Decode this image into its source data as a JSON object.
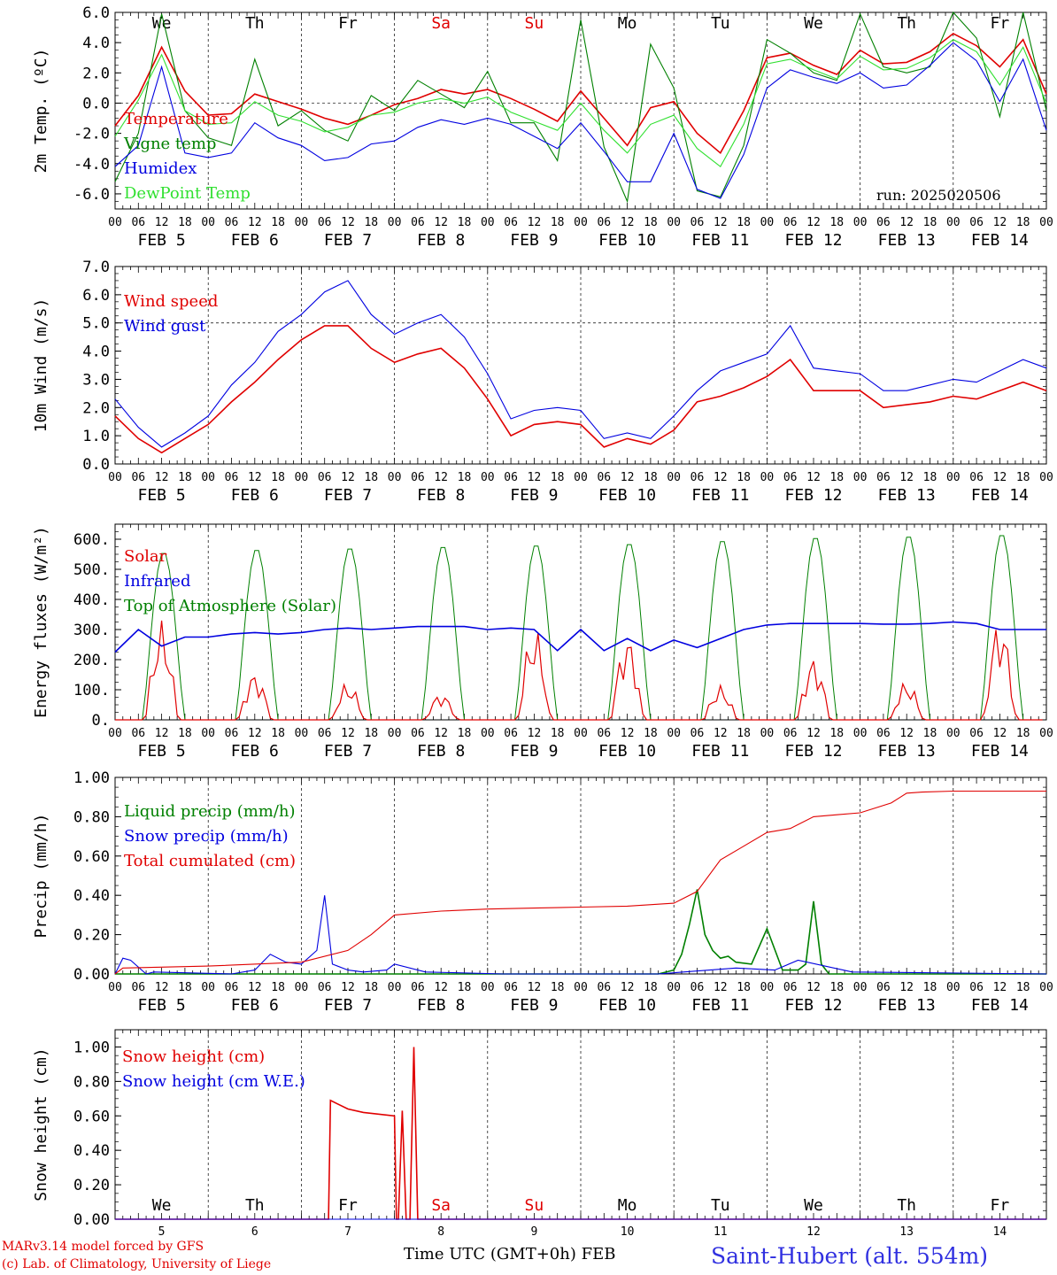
{
  "run_label": "run: 2025020506",
  "footer": {
    "credit1": "MARv3.14 model forced by GFS",
    "credit2": "(c) Lab. of Climatology, University of Liege",
    "xlabel": "Time UTC (GMT+0h)",
    "month": "FEB",
    "station": "Saint-Hubert (alt. 554m)"
  },
  "colors": {
    "red": "#e00000",
    "green": "#008000",
    "blue": "#0000e0",
    "lightgreen": "#30e030",
    "bg": "#ffffff",
    "weekday": "#000000",
    "weekend": "#e00000"
  },
  "days": [
    {
      "date": "FEB  5",
      "num": "5",
      "weekday": "We",
      "weekend": false
    },
    {
      "date": "FEB  6",
      "num": "6",
      "weekday": "Th",
      "weekend": false
    },
    {
      "date": "FEB  7",
      "num": "7",
      "weekday": "Fr",
      "weekend": false
    },
    {
      "date": "FEB  8",
      "num": "8",
      "weekday": "Sa",
      "weekend": true
    },
    {
      "date": "FEB  9",
      "num": "9",
      "weekday": "Su",
      "weekend": true
    },
    {
      "date": "FEB 10",
      "num": "10",
      "weekday": "Mo",
      "weekend": false
    },
    {
      "date": "FEB 11",
      "num": "11",
      "weekday": "Tu",
      "weekend": false
    },
    {
      "date": "FEB 12",
      "num": "12",
      "weekday": "We",
      "weekend": false
    },
    {
      "date": "FEB 13",
      "num": "13",
      "weekday": "Th",
      "weekend": false
    },
    {
      "date": "FEB 14",
      "num": "14",
      "weekday": "Fr",
      "weekend": false
    }
  ],
  "hour_labels": [
    "00",
    "06",
    "12",
    "18"
  ],
  "chart_data": [
    {
      "type": "line",
      "ylabel": "2m Temp. (ºC)",
      "ylim": [
        -7,
        6
      ],
      "yticks": [
        "6.0",
        "4.0",
        "2.0",
        "0.0",
        "-2.0",
        "-4.0",
        "-6.0"
      ],
      "ytick_values": [
        6,
        4,
        2,
        0,
        -2,
        -4,
        -6
      ],
      "ref_line": 0,
      "show_weekdays": true,
      "x_hours": [
        0,
        6,
        12,
        18,
        24,
        30,
        36,
        42,
        48,
        54,
        60,
        66,
        72,
        78,
        84,
        90,
        96,
        102,
        108,
        114,
        120,
        126,
        132,
        138,
        144,
        150,
        156,
        162,
        168,
        174,
        180,
        186,
        192,
        198,
        204,
        210,
        216,
        222,
        228,
        234,
        240
      ],
      "series": [
        {
          "name": "Temperature",
          "color": "#e00000",
          "values": [
            -1.5,
            0.5,
            3.7,
            0.8,
            -0.8,
            -0.7,
            0.6,
            0.1,
            -0.4,
            -1.0,
            -1.4,
            -0.8,
            -0.1,
            0.3,
            0.9,
            0.6,
            0.9,
            0.3,
            -0.4,
            -1.2,
            0.8,
            -1.0,
            -2.8,
            -0.3,
            0.1,
            -2.0,
            -3.3,
            -0.5,
            3.0,
            3.3,
            2.5,
            1.9,
            3.5,
            2.6,
            2.7,
            3.4,
            4.6,
            3.8,
            2.4,
            4.2,
            0.6
          ]
        },
        {
          "name": "Vigne temp",
          "color": "#008000",
          "values": [
            -5.2,
            -2.0,
            5.9,
            -0.5,
            -2.3,
            -2.8,
            2.9,
            -1.5,
            -0.5,
            -1.8,
            -2.5,
            0.5,
            -0.5,
            1.5,
            0.6,
            -0.3,
            2.1,
            -1.3,
            -1.3,
            -3.8,
            5.5,
            -2.9,
            -6.5,
            3.9,
            1.0,
            -5.8,
            -6.2,
            -2.8,
            4.2,
            3.3,
            2.0,
            1.5,
            5.9,
            2.4,
            2.0,
            2.4,
            6.0,
            4.3,
            -0.9,
            6.0,
            -0.5
          ]
        },
        {
          "name": "Humidex",
          "color": "#0000e0",
          "values": [
            -4.2,
            -2.8,
            2.4,
            -3.3,
            -3.6,
            -3.3,
            -1.3,
            -2.3,
            -2.8,
            -3.8,
            -3.6,
            -2.7,
            -2.5,
            -1.6,
            -1.1,
            -1.4,
            -1.0,
            -1.4,
            -2.2,
            -3.0,
            -1.3,
            -3.2,
            -5.2,
            -5.2,
            -2.0,
            -5.7,
            -6.3,
            -3.4,
            1.0,
            2.2,
            1.7,
            1.3,
            2.0,
            1.0,
            1.2,
            2.5,
            4.0,
            2.8,
            0.1,
            2.9,
            -1.8
          ]
        },
        {
          "name": "DewPoint Temp",
          "color": "#30e030",
          "values": [
            -2.2,
            0.2,
            3.2,
            -0.5,
            -1.4,
            -1.3,
            0.1,
            -0.8,
            -1.2,
            -1.9,
            -1.6,
            -0.8,
            -0.6,
            0.0,
            0.3,
            0.0,
            0.4,
            -0.6,
            -1.2,
            -1.8,
            0.0,
            -1.8,
            -3.3,
            -1.4,
            -0.8,
            -3.0,
            -4.2,
            -1.4,
            2.6,
            2.9,
            2.2,
            1.6,
            3.1,
            2.2,
            2.3,
            3.0,
            4.2,
            3.4,
            1.2,
            3.7,
            0.0
          ]
        }
      ]
    },
    {
      "type": "line",
      "ylabel": "10m Wind (m/s)",
      "ylim": [
        0,
        7
      ],
      "yticks": [
        "7.0",
        "6.0",
        "5.0",
        "4.0",
        "3.0",
        "2.0",
        "1.0",
        "0.0"
      ],
      "ytick_values": [
        7,
        6,
        5,
        4,
        3,
        2,
        1,
        0
      ],
      "ref_line": 5,
      "show_weekdays": false,
      "x_hours": [
        0,
        6,
        12,
        18,
        24,
        30,
        36,
        42,
        48,
        54,
        60,
        66,
        72,
        78,
        84,
        90,
        96,
        102,
        108,
        114,
        120,
        126,
        132,
        138,
        144,
        150,
        156,
        162,
        168,
        174,
        180,
        186,
        192,
        198,
        204,
        210,
        216,
        222,
        228,
        234,
        240
      ],
      "series": [
        {
          "name": "Wind speed",
          "color": "#e00000",
          "values": [
            1.7,
            0.9,
            0.4,
            0.9,
            1.4,
            2.2,
            2.9,
            3.7,
            4.4,
            4.9,
            4.9,
            4.1,
            3.6,
            3.9,
            4.1,
            3.4,
            2.3,
            1.0,
            1.4,
            1.5,
            1.4,
            0.6,
            0.9,
            0.7,
            1.2,
            2.2,
            2.4,
            2.7,
            3.1,
            3.7,
            2.6,
            2.6,
            2.6,
            2.0,
            2.1,
            2.2,
            2.4,
            2.3,
            2.6,
            2.9,
            2.6
          ]
        },
        {
          "name": "Wind gust",
          "color": "#0000e0",
          "values": [
            2.3,
            1.3,
            0.6,
            1.1,
            1.7,
            2.8,
            3.6,
            4.7,
            5.3,
            6.1,
            6.5,
            5.3,
            4.6,
            5.0,
            5.3,
            4.5,
            3.2,
            1.6,
            1.9,
            2.0,
            1.9,
            0.9,
            1.1,
            0.9,
            1.7,
            2.6,
            3.3,
            3.6,
            3.9,
            4.9,
            3.4,
            3.3,
            3.2,
            2.6,
            2.6,
            2.8,
            3.0,
            2.9,
            3.3,
            3.7,
            3.4
          ]
        }
      ]
    },
    {
      "type": "line",
      "ylabel": "Energy fluxes (W/m²)",
      "ylim": [
        0,
        650
      ],
      "yticks": [
        "600.",
        "500.",
        "400.",
        "300.",
        "200.",
        "100.",
        "0."
      ],
      "ytick_values": [
        600,
        500,
        400,
        300,
        200,
        100,
        0
      ],
      "ref_line": null,
      "show_weekdays": false,
      "toa_peaks": [
        560,
        570,
        575,
        580,
        585,
        590,
        600,
        610,
        615,
        620
      ],
      "solar_peaks": [
        330,
        160,
        125,
        90,
        310,
        285,
        115,
        210,
        130,
        340
      ],
      "infrared": {
        "x_hours": [
          0,
          6,
          12,
          18,
          24,
          30,
          36,
          42,
          48,
          54,
          60,
          66,
          72,
          78,
          84,
          90,
          96,
          102,
          108,
          114,
          120,
          126,
          132,
          138,
          144,
          150,
          156,
          162,
          168,
          174,
          180,
          186,
          192,
          198,
          204,
          210,
          216,
          222,
          228,
          234,
          240
        ],
        "values": [
          225,
          300,
          245,
          275,
          275,
          285,
          290,
          285,
          290,
          300,
          305,
          300,
          305,
          310,
          310,
          310,
          300,
          305,
          300,
          230,
          300,
          230,
          270,
          230,
          265,
          240,
          270,
          300,
          315,
          320,
          320,
          320,
          320,
          318,
          318,
          320,
          325,
          320,
          300,
          300,
          300
        ]
      },
      "series": [
        {
          "name": "Solar",
          "color": "#e00000"
        },
        {
          "name": "Infrared",
          "color": "#0000e0"
        },
        {
          "name": "Top of Atmosphere (Solar)",
          "color": "#008000"
        }
      ]
    },
    {
      "type": "line",
      "ylabel": "Precip (mm/h)",
      "ylim": [
        0,
        1.0
      ],
      "yticks": [
        "1.00",
        "0.80",
        "0.60",
        "0.40",
        "0.20",
        "0.00"
      ],
      "ytick_values": [
        1.0,
        0.8,
        0.6,
        0.4,
        0.2,
        0
      ],
      "ref_line": null,
      "show_weekdays": false,
      "series": [
        {
          "name": "Liquid precip (mm/h)",
          "color": "#008000",
          "x_hours": [
            0,
            140,
            144,
            146,
            148,
            150,
            152,
            154,
            156,
            158,
            160,
            164,
            168,
            172,
            176,
            178,
            180,
            182,
            184,
            192,
            196,
            200,
            202,
            204,
            206,
            208,
            210,
            240
          ],
          "values": [
            0,
            0,
            0.02,
            0.1,
            0.25,
            0.43,
            0.2,
            0.12,
            0.08,
            0.09,
            0.06,
            0.05,
            0.23,
            0.02,
            0.02,
            0.05,
            0.37,
            0.05,
            0,
            0,
            0,
            0,
            0,
            0,
            0,
            0,
            0,
            0
          ]
        },
        {
          "name": "Snow precip (mm/h)",
          "color": "#0000e0",
          "x_hours": [
            0,
            2,
            4,
            8,
            10,
            30,
            36,
            40,
            44,
            48,
            52,
            54,
            56,
            60,
            64,
            70,
            72,
            80,
            100,
            140,
            160,
            170,
            176,
            190,
            240
          ],
          "values": [
            0,
            0.08,
            0.07,
            0,
            0.01,
            0,
            0.02,
            0.1,
            0.06,
            0.05,
            0.12,
            0.4,
            0.05,
            0.02,
            0.01,
            0.02,
            0.05,
            0.01,
            0,
            0,
            0.03,
            0.02,
            0.07,
            0.01,
            0
          ]
        },
        {
          "name": "Total cumulated (cm)",
          "color": "#e00000",
          "x_hours": [
            0,
            2,
            24,
            48,
            60,
            66,
            72,
            84,
            96,
            108,
            120,
            132,
            144,
            150,
            156,
            162,
            168,
            174,
            180,
            186,
            192,
            200,
            204,
            208,
            216,
            240
          ],
          "values": [
            0,
            0.03,
            0.04,
            0.06,
            0.12,
            0.2,
            0.3,
            0.32,
            0.33,
            0.335,
            0.34,
            0.345,
            0.36,
            0.42,
            0.58,
            0.65,
            0.72,
            0.74,
            0.8,
            0.81,
            0.82,
            0.87,
            0.92,
            0.925,
            0.93,
            0.93
          ]
        }
      ]
    },
    {
      "type": "line",
      "ylabel": "Snow height (cm)",
      "ylim": [
        0,
        1.1
      ],
      "yticks": [
        "1.00",
        "0.80",
        "0.60",
        "0.40",
        "0.20",
        "0.00"
      ],
      "ytick_values": [
        1.0,
        0.8,
        0.6,
        0.4,
        0.2,
        0
      ],
      "ref_line": null,
      "show_weekdays": true,
      "series": [
        {
          "name": "Snow height (cm)",
          "color": "#e00000",
          "x_hours": [
            0,
            55,
            55.5,
            60,
            64,
            72,
            72.5,
            73,
            74,
            75,
            76,
            77,
            78,
            79,
            80,
            240
          ],
          "values": [
            0,
            0,
            0.69,
            0.64,
            0.62,
            0.6,
            0,
            0,
            0.63,
            0,
            0,
            1.0,
            0,
            0,
            0,
            0
          ]
        },
        {
          "name": "Snow height (cm W.E.)",
          "color": "#0000e0",
          "x_hours": [
            0,
            240
          ],
          "values": [
            0,
            0
          ]
        }
      ]
    }
  ]
}
